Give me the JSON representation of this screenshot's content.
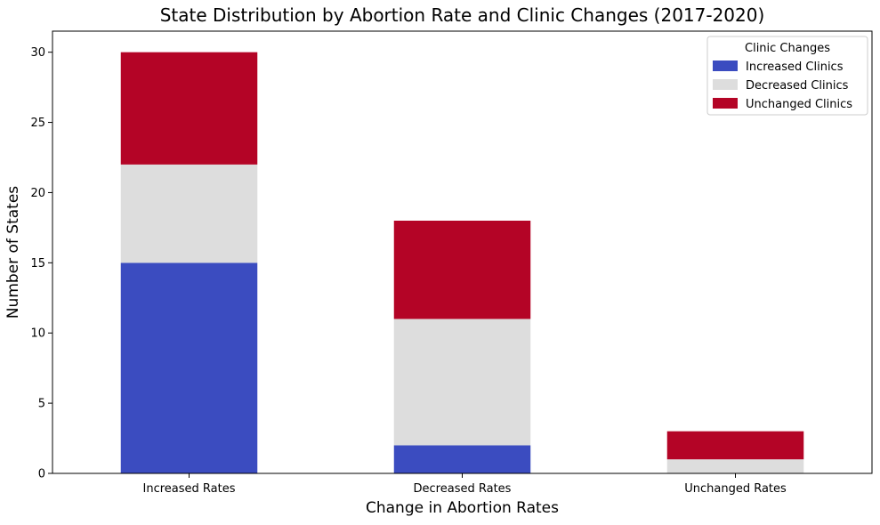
{
  "chart_data": {
    "type": "bar",
    "stacked": true,
    "title": "State Distribution by Abortion Rate and Clinic Changes (2017-2020)",
    "xlabel": "Change in Abortion Rates",
    "ylabel": "Number of States",
    "categories": [
      "Increased Rates",
      "Decreased Rates",
      "Unchanged Rates"
    ],
    "series": [
      {
        "name": "Increased Clinics",
        "color": "#3b4cc0",
        "values": [
          15,
          2,
          0
        ]
      },
      {
        "name": "Decreased Clinics",
        "color": "#dddddd",
        "values": [
          7,
          9,
          1
        ]
      },
      {
        "name": "Unchanged Clinics",
        "color": "#b40426",
        "values": [
          8,
          7,
          2
        ]
      }
    ],
    "ylim": [
      0,
      31.5
    ],
    "yticks": [
      0,
      5,
      10,
      15,
      20,
      25,
      30
    ],
    "legend": {
      "title": "Clinic Changes",
      "placement": "top-right"
    },
    "grid": false
  }
}
